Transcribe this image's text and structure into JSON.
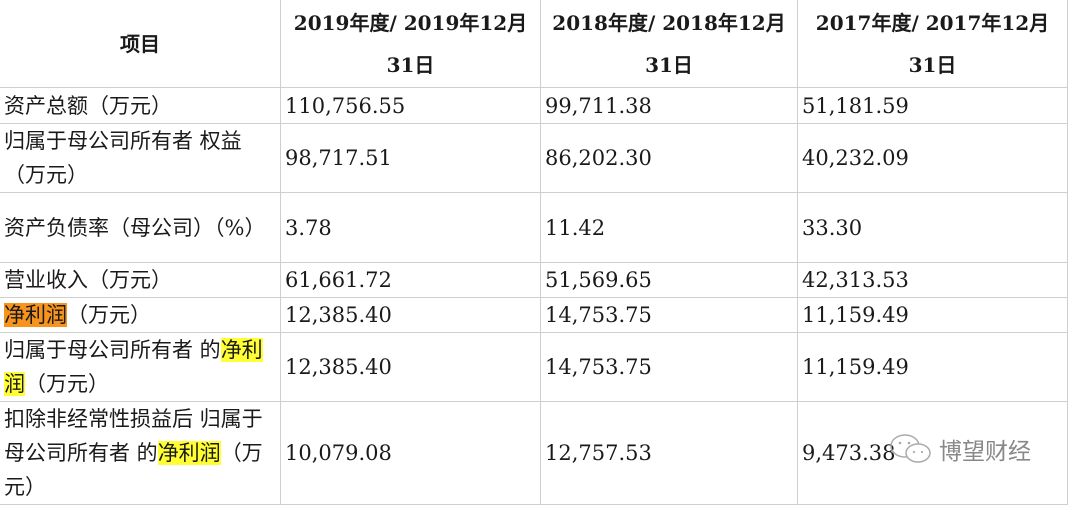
{
  "header": {
    "item": "项目",
    "cols": [
      "2019年度/ 2019年12月31日",
      "2018年度/ 2018年12月31日",
      "2017年度/ 2017年12月31日"
    ]
  },
  "rows": [
    {
      "label": [
        {
          "t": "资产总额（万元）"
        }
      ],
      "values": [
        "110,756.55",
        "99,711.38",
        "51,181.59"
      ]
    },
    {
      "label": [
        {
          "t": "归属于母公司所有者 权益（万元）"
        }
      ],
      "values": [
        "98,717.51",
        "86,202.30",
        "40,232.09"
      ]
    },
    {
      "label": [
        {
          "t": "资产负债率（母公司）（%）"
        }
      ],
      "values": [
        "3.78",
        "11.42",
        "33.30"
      ]
    },
    {
      "label": [
        {
          "t": "营业收入（万元）"
        }
      ],
      "values": [
        "61,661.72",
        "51,569.65",
        "42,313.53"
      ]
    },
    {
      "label": [
        {
          "t": "净利润",
          "hl": "orange"
        },
        {
          "t": "（万元）"
        }
      ],
      "values": [
        "12,385.40",
        "14,753.75",
        "11,159.49"
      ]
    },
    {
      "label": [
        {
          "t": "归属于母公司所有者 的"
        },
        {
          "t": "净利润",
          "hl": "yellow"
        },
        {
          "t": "（万元）"
        }
      ],
      "values": [
        "12,385.40",
        "14,753.75",
        "11,159.49"
      ]
    },
    {
      "label": [
        {
          "t": "扣除非经常性损益后 归属于母公司所有者 的"
        },
        {
          "t": "净利润",
          "hl": "yellow"
        },
        {
          "t": "（万元）"
        }
      ],
      "values": [
        "10,079.08",
        "12,757.53",
        "9,473.38"
      ]
    }
  ],
  "highlight_colors": {
    "orange": "#f7941d",
    "yellow": "#ffff33"
  },
  "watermark": {
    "icon": "wechat-icon",
    "text": "博望财经"
  }
}
